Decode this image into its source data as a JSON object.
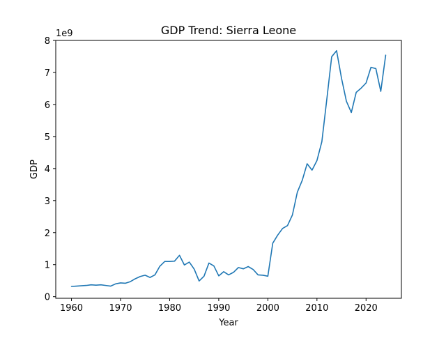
{
  "chart_data": {
    "type": "line",
    "title": "GDP Trend: Sierra Leone",
    "xlabel": "Year",
    "ylabel": "GDP",
    "y_offset_label": "1e9",
    "xlim": [
      1956.8,
      2027.2
    ],
    "ylim": [
      -0.05,
      8.0
    ],
    "y_scale_factor": 1000000000,
    "grid": false,
    "legend": "none",
    "x_ticks": [
      1960,
      1970,
      1980,
      1990,
      2000,
      2010,
      2020
    ],
    "x_tick_labels": [
      "1960",
      "1970",
      "1980",
      "1990",
      "2000",
      "2010",
      "2020"
    ],
    "y_ticks": [
      0,
      1,
      2,
      3,
      4,
      5,
      6,
      7,
      8
    ],
    "y_tick_labels": [
      "0",
      "1",
      "2",
      "3",
      "4",
      "5",
      "6",
      "7",
      "8"
    ],
    "series": [
      {
        "color": "#1f77b4",
        "x": [
          1960,
          1961,
          1962,
          1963,
          1964,
          1965,
          1966,
          1967,
          1968,
          1969,
          1970,
          1971,
          1972,
          1973,
          1974,
          1975,
          1976,
          1977,
          1978,
          1979,
          1980,
          1981,
          1982,
          1983,
          1984,
          1985,
          1986,
          1987,
          1988,
          1989,
          1990,
          1991,
          1992,
          1993,
          1994,
          1995,
          1996,
          1997,
          1998,
          1999,
          2000,
          2001,
          2002,
          2003,
          2004,
          2005,
          2006,
          2007,
          2008,
          2009,
          2010,
          2011,
          2012,
          2013,
          2014,
          2015,
          2016,
          2017,
          2018,
          2019,
          2020,
          2021,
          2022,
          2023,
          2024
        ],
        "values": [
          0.32,
          0.33,
          0.34,
          0.35,
          0.37,
          0.36,
          0.37,
          0.35,
          0.33,
          0.4,
          0.43,
          0.42,
          0.47,
          0.56,
          0.63,
          0.67,
          0.6,
          0.68,
          0.95,
          1.1,
          1.1,
          1.11,
          1.29,
          0.99,
          1.08,
          0.86,
          0.49,
          0.64,
          1.05,
          0.96,
          0.65,
          0.78,
          0.68,
          0.76,
          0.91,
          0.87,
          0.94,
          0.85,
          0.68,
          0.67,
          0.64,
          1.67,
          1.92,
          2.13,
          2.22,
          2.55,
          3.26,
          3.63,
          4.15,
          3.95,
          4.25,
          4.84,
          6.15,
          7.49,
          7.68,
          6.82,
          6.1,
          5.75,
          6.38,
          6.51,
          6.67,
          7.16,
          7.12,
          6.41,
          7.54
        ]
      }
    ]
  }
}
